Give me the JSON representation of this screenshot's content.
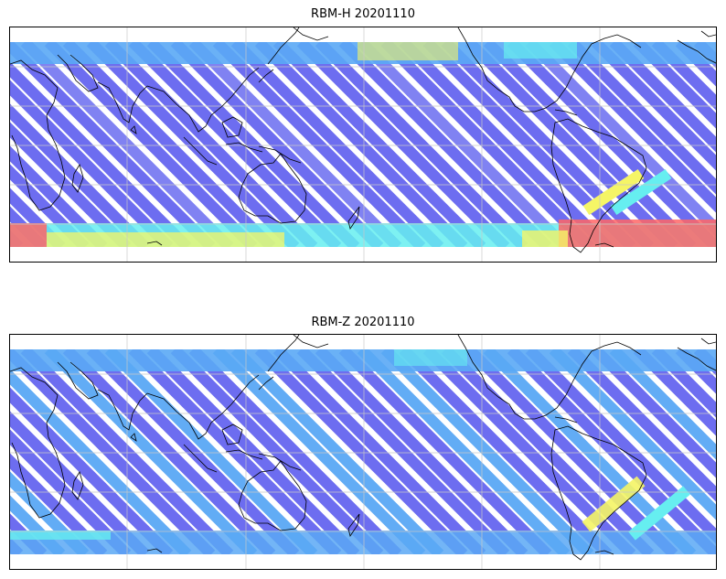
{
  "figure": {
    "panels": [
      {
        "title": "RBM-H 20201110",
        "variable": "RBM-H",
        "date": "20201110"
      },
      {
        "title": "RBM-Z 20201110",
        "variable": "RBM-Z",
        "date": "20201110"
      }
    ]
  },
  "colors": {
    "low": "#6666f0",
    "mid_low": "#5aa8f5",
    "mid": "#66eef0",
    "mid_high": "#f5f566",
    "high": "#ff6666",
    "coast": "#000000",
    "grid": "#c8c8c8"
  }
}
